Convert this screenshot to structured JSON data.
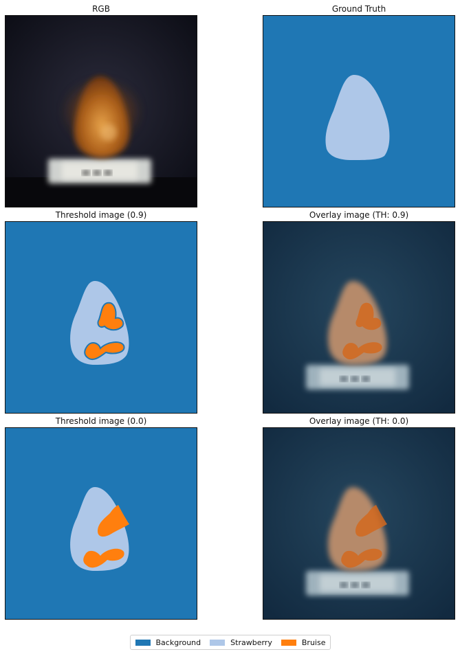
{
  "panels": [
    {
      "title": "RGB"
    },
    {
      "title": "Ground Truth"
    },
    {
      "title": "Threshold image (0.9)"
    },
    {
      "title": "Overlay image (TH: 0.9)"
    },
    {
      "title": "Threshold image (0.0)"
    },
    {
      "title": "Overlay image (TH: 0.0)"
    }
  ],
  "legend": {
    "items": [
      {
        "label": "Background",
        "color": "#1f77b4"
      },
      {
        "label": "Strawberry",
        "color": "#aec7e8"
      },
      {
        "label": "Bruise",
        "color": "#ff7f0e"
      }
    ]
  }
}
